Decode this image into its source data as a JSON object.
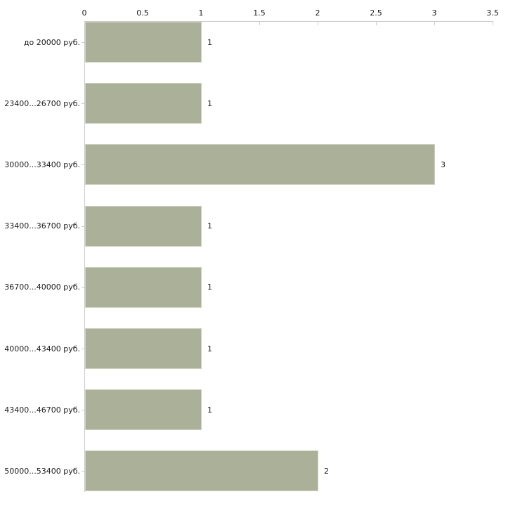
{
  "chart_data": {
    "type": "bar",
    "orientation": "horizontal",
    "title": "",
    "xlabel": "",
    "ylabel": "",
    "grid": "off",
    "legend": "none",
    "categories": [
      "до 20000 руб.",
      "23400...26700 руб.",
      "30000...33400 руб.",
      "33400...36700 руб.",
      "36700...40000 руб.",
      "40000...43400 руб.",
      "43400...46700 руб.",
      "50000...53400 руб."
    ],
    "values": [
      1,
      1,
      3,
      1,
      1,
      1,
      1,
      2
    ],
    "value_labels": [
      "1",
      "1",
      "3",
      "1",
      "1",
      "1",
      "1",
      "2"
    ],
    "x_axis": {
      "position": "top",
      "min": 0,
      "max": 3.5,
      "ticks": [
        0,
        0.5,
        1,
        1.5,
        2,
        2.5,
        3,
        3.5
      ],
      "tick_labels": [
        "0",
        "0.5",
        "1",
        "1.5",
        "2",
        "2.5",
        "3",
        "3.5"
      ]
    },
    "colors": {
      "bar_fill": "#abb198",
      "bar_border": "#cdd2c0",
      "axis_line": "#c9c9c9",
      "tick_mark": "#ccd0bc",
      "text": "#1c1c1c",
      "background": "#ffffff"
    }
  }
}
